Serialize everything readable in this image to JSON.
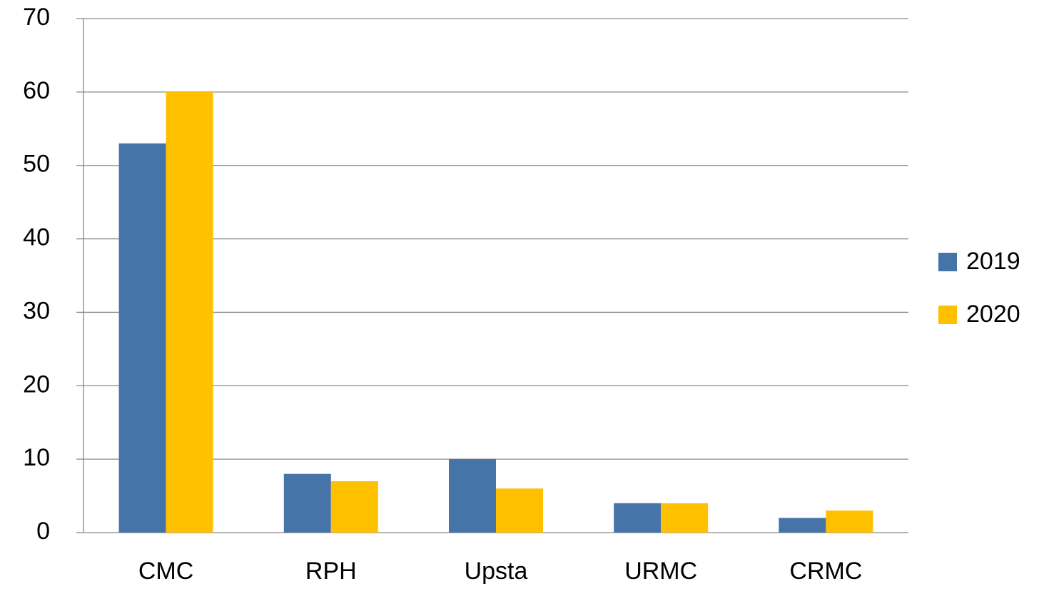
{
  "chart_data": {
    "type": "bar",
    "categories": [
      "CMC",
      "RPH",
      "Upsta",
      "URMC",
      "CRMC"
    ],
    "series": [
      {
        "name": "2019",
        "color": "#4673a8",
        "values": [
          53,
          8,
          10,
          4,
          2
        ]
      },
      {
        "name": "2020",
        "color": "#ffc000",
        "values": [
          60,
          7,
          6,
          4,
          3
        ]
      }
    ],
    "ylim": [
      0,
      70
    ],
    "yticks": [
      0,
      10,
      20,
      30,
      40,
      50,
      60,
      70
    ],
    "grid": true,
    "legend": "right"
  }
}
